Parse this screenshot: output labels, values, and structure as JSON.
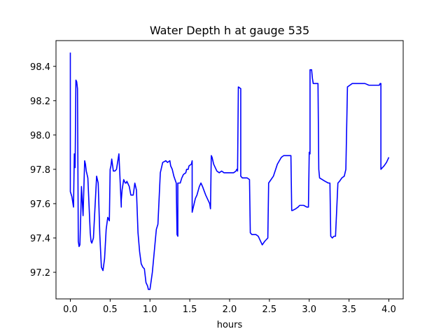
{
  "chart_data": {
    "type": "line",
    "title": "Water Depth h at gauge 535",
    "xlabel": "hours",
    "ylabel": "",
    "xlim": [
      -0.18,
      4.18
    ],
    "ylim": [
      97.045,
      98.55
    ],
    "xticks": [
      0.0,
      0.5,
      1.0,
      1.5,
      2.0,
      2.5,
      3.0,
      3.5,
      4.0
    ],
    "xtick_labels": [
      "0.0",
      "0.5",
      "1.0",
      "1.5",
      "2.0",
      "2.5",
      "3.0",
      "3.5",
      "4.0"
    ],
    "yticks": [
      97.2,
      97.4,
      97.6,
      97.8,
      98.0,
      98.2,
      98.4
    ],
    "ytick_labels": [
      "97.2",
      "97.4",
      "97.6",
      "97.8",
      "98.0",
      "98.2",
      "98.4"
    ],
    "grid": false,
    "series": [
      {
        "color": "#0000ff",
        "x": [
          0.0,
          0.0,
          0.02,
          0.04,
          0.05,
          0.06,
          0.07,
          0.08,
          0.09,
          0.1,
          0.11,
          0.12,
          0.13,
          0.14,
          0.16,
          0.18,
          0.19,
          0.2,
          0.21,
          0.22,
          0.25,
          0.26,
          0.27,
          0.29,
          0.31,
          0.33,
          0.35,
          0.37,
          0.39,
          0.41,
          0.43,
          0.45,
          0.47,
          0.49,
          0.5,
          0.51,
          0.52,
          0.54,
          0.56,
          0.58,
          0.61,
          0.64,
          0.64,
          0.65,
          0.67,
          0.69,
          0.7,
          0.71,
          0.72,
          0.74,
          0.76,
          0.79,
          0.81,
          0.83,
          0.85,
          0.87,
          0.89,
          0.91,
          0.93,
          0.95,
          0.97,
          0.98,
          1.0,
          1.03,
          1.05,
          1.08,
          1.1,
          1.13,
          1.15,
          1.16,
          1.2,
          1.22,
          1.25,
          1.26,
          1.28,
          1.3,
          1.33,
          1.34,
          1.35,
          1.35,
          1.38,
          1.4,
          1.42,
          1.45,
          1.46,
          1.48,
          1.49,
          1.52,
          1.53,
          1.53,
          1.57,
          1.59,
          1.62,
          1.64,
          1.66,
          1.7,
          1.75,
          1.76,
          1.77,
          1.78,
          1.8,
          1.84,
          1.87,
          1.9,
          1.93,
          1.96,
          1.99,
          2.02,
          2.05,
          2.08,
          2.09,
          2.1,
          2.1,
          2.11,
          2.14,
          2.14,
          2.16,
          2.2,
          2.22,
          2.25,
          2.26,
          2.28,
          2.3,
          2.33,
          2.36,
          2.38,
          2.41,
          2.44,
          2.48,
          2.49,
          2.49,
          2.55,
          2.6,
          2.65,
          2.68,
          2.7,
          2.73,
          2.76,
          2.77,
          2.78,
          2.79,
          2.83,
          2.86,
          2.88,
          2.9,
          2.93,
          2.97,
          2.99,
          3.0,
          3.01,
          3.01,
          3.03,
          3.04,
          3.05,
          3.11,
          3.12,
          3.13,
          3.2,
          3.24,
          3.26,
          3.27,
          3.29,
          3.31,
          3.33,
          3.36,
          3.38,
          3.41,
          3.44,
          3.45,
          3.46,
          3.48,
          3.51,
          3.54,
          3.6,
          3.65,
          3.7,
          3.75,
          3.8,
          3.84,
          3.88,
          3.89,
          3.9,
          3.9,
          3.94,
          3.97,
          4.0
        ],
        "y": [
          98.48,
          97.67,
          97.64,
          97.58,
          97.89,
          97.81,
          98.32,
          98.31,
          98.27,
          97.38,
          97.35,
          97.36,
          97.52,
          97.7,
          97.53,
          97.85,
          97.83,
          97.79,
          97.77,
          97.75,
          97.43,
          97.38,
          97.37,
          97.4,
          97.58,
          97.76,
          97.72,
          97.42,
          97.23,
          97.21,
          97.28,
          97.45,
          97.52,
          97.5,
          97.8,
          97.82,
          97.86,
          97.79,
          97.79,
          97.8,
          97.89,
          97.58,
          97.62,
          97.68,
          97.74,
          97.72,
          97.72,
          97.73,
          97.72,
          97.7,
          97.65,
          97.65,
          97.72,
          97.68,
          97.43,
          97.32,
          97.25,
          97.23,
          97.22,
          97.14,
          97.12,
          97.1,
          97.1,
          97.2,
          97.3,
          97.45,
          97.48,
          97.78,
          97.82,
          97.84,
          97.85,
          97.84,
          97.85,
          97.82,
          97.8,
          97.76,
          97.72,
          97.42,
          97.41,
          97.72,
          97.72,
          97.75,
          97.77,
          97.78,
          97.8,
          97.8,
          97.82,
          97.83,
          97.85,
          97.55,
          97.63,
          97.65,
          97.7,
          97.72,
          97.7,
          97.65,
          97.6,
          97.57,
          97.88,
          97.87,
          97.83,
          97.79,
          97.78,
          97.79,
          97.78,
          97.78,
          97.78,
          97.78,
          97.78,
          97.79,
          97.8,
          97.8,
          97.79,
          98.28,
          98.27,
          97.76,
          97.75,
          97.75,
          97.75,
          97.74,
          97.43,
          97.42,
          97.42,
          97.42,
          97.41,
          97.39,
          97.36,
          97.38,
          97.4,
          97.71,
          97.72,
          97.76,
          97.83,
          97.87,
          97.88,
          97.88,
          97.88,
          97.88,
          97.88,
          97.56,
          97.56,
          97.57,
          97.58,
          97.59,
          97.59,
          97.59,
          97.58,
          97.58,
          97.9,
          97.89,
          98.38,
          98.38,
          98.33,
          98.3,
          98.3,
          97.8,
          97.75,
          97.73,
          97.72,
          97.72,
          97.41,
          97.4,
          97.41,
          97.41,
          97.72,
          97.73,
          97.75,
          97.76,
          97.78,
          97.8,
          98.28,
          98.29,
          98.3,
          98.3,
          98.3,
          98.3,
          98.29,
          98.29,
          98.29,
          98.29,
          98.3,
          98.3,
          97.8,
          97.82,
          97.84,
          97.87
        ]
      }
    ]
  }
}
